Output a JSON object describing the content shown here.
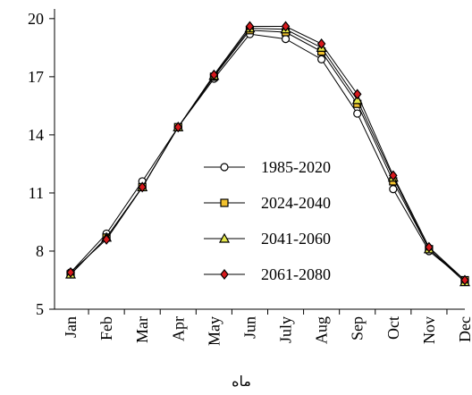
{
  "chart_data": {
    "type": "line",
    "title": "",
    "xlabel": "ماه",
    "ylabel": "",
    "categories": [
      "Jan",
      "Feb",
      "Mar",
      "Apr",
      "May",
      "Jun",
      "July",
      "Aug",
      "Sep",
      "Oct",
      "Nov",
      "Dec"
    ],
    "ylim": [
      5,
      20.5
    ],
    "yticks": [
      5,
      8,
      11,
      14,
      17,
      20
    ],
    "grid": false,
    "legend_position": "center",
    "series": [
      {
        "name": "1985-2020",
        "marker": "circle",
        "fill": "#ffffff",
        "stroke": "#000000",
        "values": [
          6.9,
          8.9,
          11.6,
          14.4,
          16.9,
          19.2,
          18.95,
          17.9,
          15.1,
          11.2,
          8.0,
          6.5
        ]
      },
      {
        "name": "2024-2040",
        "marker": "square",
        "fill": "#f2c12e",
        "stroke": "#000000",
        "values": [
          6.8,
          8.7,
          11.3,
          14.4,
          17.0,
          19.4,
          19.3,
          18.3,
          15.6,
          11.6,
          8.1,
          6.5
        ]
      },
      {
        "name": "2041-2060",
        "marker": "triangle",
        "fill": "#e6e94a",
        "stroke": "#000000",
        "values": [
          6.8,
          8.7,
          11.3,
          14.4,
          17.05,
          19.5,
          19.45,
          18.5,
          15.8,
          11.8,
          8.1,
          6.4
        ]
      },
      {
        "name": "2061-2080",
        "marker": "diamond",
        "fill": "#d7191c",
        "stroke": "#000000",
        "values": [
          6.9,
          8.6,
          11.3,
          14.4,
          17.1,
          19.6,
          19.6,
          18.7,
          16.1,
          11.9,
          8.2,
          6.5
        ]
      }
    ]
  }
}
